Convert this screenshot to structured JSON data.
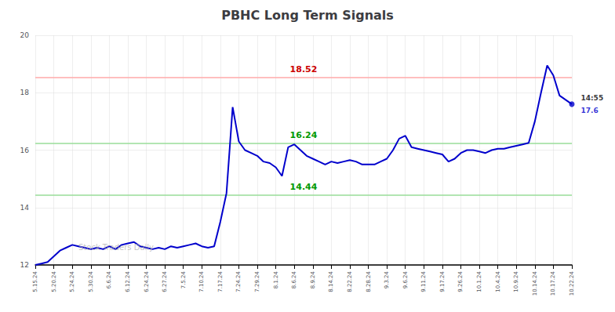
{
  "chart_data": {
    "type": "line",
    "title": "PBHC Long Term Signals",
    "categories": [
      "5.15.24",
      null,
      null,
      "5.20.24",
      null,
      null,
      "5.24.24",
      null,
      null,
      "5.30.24",
      null,
      null,
      "6.6.24",
      null,
      null,
      "6.12.24",
      null,
      null,
      "6.24.24",
      null,
      null,
      "6.27.24",
      null,
      null,
      "7.5.24",
      null,
      null,
      "7.10.24",
      null,
      null,
      "7.17.24",
      null,
      null,
      "7.24.24",
      null,
      null,
      "7.29.24",
      null,
      null,
      "8.1.24",
      null,
      null,
      "8.6.24",
      null,
      null,
      "8.9.24",
      null,
      null,
      "8.14.24",
      null,
      null,
      "8.22.24",
      null,
      null,
      "8.28.24",
      null,
      null,
      "9.3.24",
      null,
      null,
      "9.6.24",
      null,
      null,
      "9.11.24",
      null,
      null,
      "9.17.24",
      null,
      null,
      "9.26.24",
      null,
      null,
      "10.1.24",
      null,
      null,
      "10.4.24",
      null,
      null,
      "10.9.24",
      null,
      null,
      "10.14.24",
      null,
      null,
      "10.17.24",
      null,
      null,
      "10.22.24"
    ],
    "values": [
      12.0,
      12.05,
      12.1,
      12.3,
      12.5,
      12.6,
      12.7,
      12.65,
      12.6,
      12.55,
      12.6,
      12.55,
      12.65,
      12.55,
      12.7,
      12.75,
      12.8,
      12.65,
      12.6,
      12.55,
      12.6,
      12.55,
      12.65,
      12.6,
      12.65,
      12.7,
      12.75,
      12.65,
      12.6,
      12.65,
      13.5,
      14.5,
      17.5,
      16.3,
      16.0,
      15.9,
      15.8,
      15.6,
      15.55,
      15.4,
      15.1,
      16.1,
      16.2,
      16.0,
      15.8,
      15.7,
      15.6,
      15.5,
      15.6,
      15.55,
      15.6,
      15.65,
      15.6,
      15.5,
      15.5,
      15.5,
      15.6,
      15.7,
      16.0,
      16.4,
      16.5,
      16.1,
      16.05,
      16.0,
      15.95,
      15.9,
      15.85,
      15.6,
      15.7,
      15.9,
      16.0,
      16.0,
      15.95,
      15.9,
      16.0,
      16.05,
      16.05,
      16.1,
      16.15,
      16.2,
      16.25,
      17.0,
      18.0,
      18.95,
      18.6,
      17.9,
      17.75,
      17.6
    ],
    "color": "#0000cc",
    "ylim": [
      12,
      20
    ],
    "yticks": [
      12,
      14,
      16,
      18,
      20
    ],
    "grid": true,
    "reference_lines": [
      {
        "y": 18.52,
        "color": "#ffaaaa",
        "label": "18.52",
        "label_color": "#cc0000"
      },
      {
        "y": 16.24,
        "color": "#99dd99",
        "label": "16.24",
        "label_color": "#009900"
      },
      {
        "y": 14.44,
        "color": "#99dd99",
        "label": "14.44",
        "label_color": "#009900"
      }
    ],
    "end_label": {
      "time": "14:55",
      "time_color": "#000000",
      "price": "17.6",
      "price_color": "#0000cc"
    },
    "watermark": {
      "text": "Stock Traders Daily",
      "color": "#aaaaaa"
    }
  }
}
